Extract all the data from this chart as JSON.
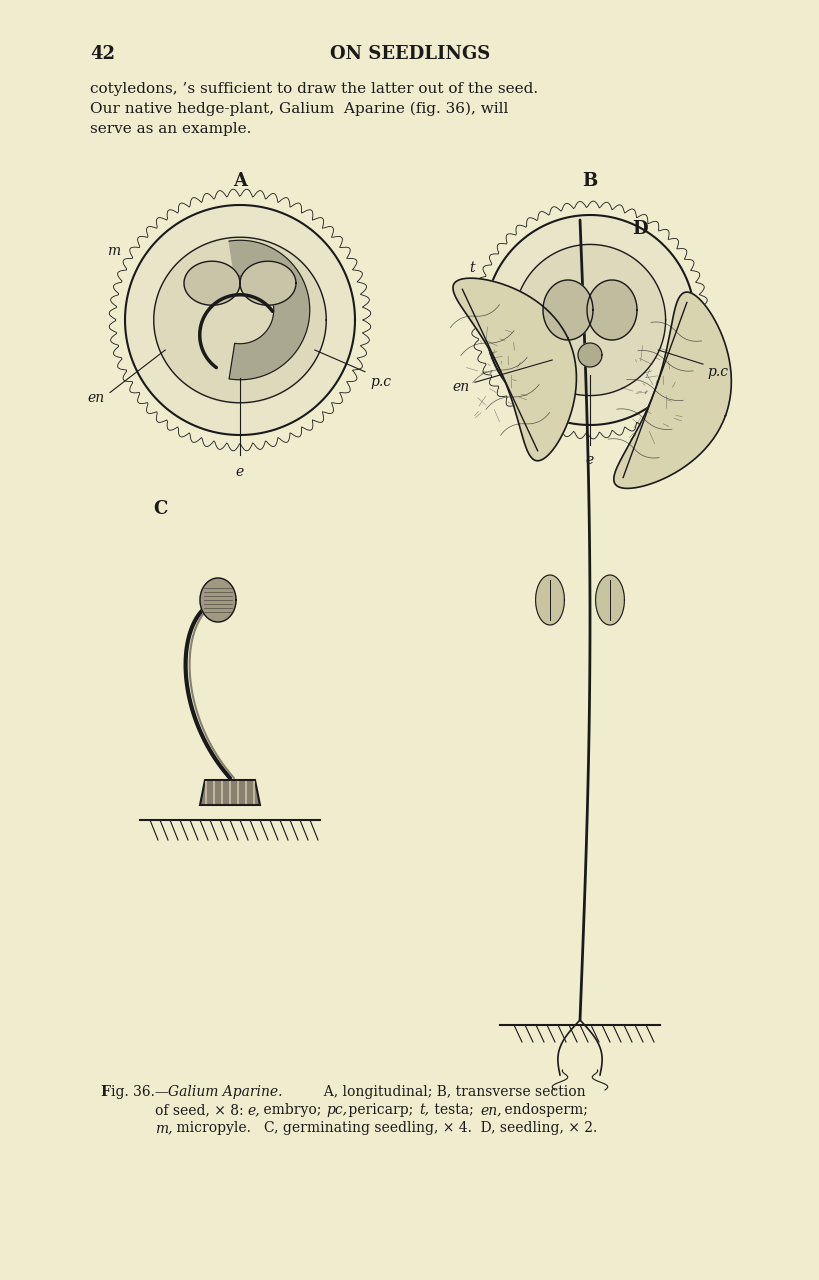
{
  "background_color": "#f0edcf",
  "page_number": "42",
  "header_title": "ON SEEDLINGS",
  "body_text_lines": [
    "cotyledons, ’s sufficient to draw the latter out of the seed.",
    "Our native hedge-plant, Galium  Aparine (fig. 36), will",
    "serve as an example."
  ],
  "label_A": "A",
  "label_B": "B",
  "label_C": "C",
  "label_D": "D",
  "caption_line1": "Fig. 36.—Galium Aparine.  A, longitudinal; B, transverse section",
  "caption_line2": "of seed, × 8:  e, embryo;  pc, pericarp;  t, testa;  en, endosperm;",
  "caption_line3": "m, micropyle.   C, germinating seedling, × 4.  D, seedling, × 2.",
  "ink_color": "#1a1a1a",
  "light_ink": "#555555",
  "fig_color": "#2a2a2a"
}
